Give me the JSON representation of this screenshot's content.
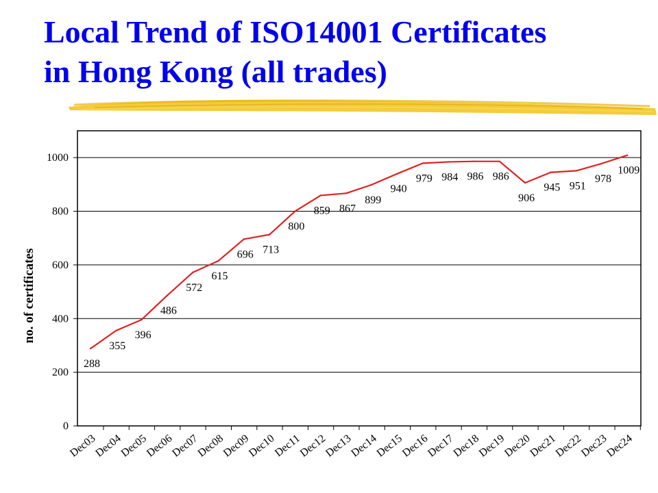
{
  "slide": {
    "title_line1": "Local Trend of ISO14001 Certificates",
    "title_line2": "in Hong Kong (all trades)"
  },
  "colors": {
    "title": "#0000ee",
    "brush_stroke": "#f2c21a",
    "line": "#e02020",
    "grid": "#000000"
  },
  "chart_data": {
    "type": "line",
    "title": "",
    "xlabel": "",
    "ylabel": "no. of certificates",
    "ylim": [
      0,
      1100
    ],
    "yticks": [
      0,
      200,
      400,
      600,
      800,
      1000
    ],
    "grid": true,
    "categories": [
      "Dec03",
      "Dec04",
      "Dec05",
      "Dec06",
      "Dec07",
      "Dec08",
      "Dec09",
      "Dec10",
      "Dec11",
      "Dec12",
      "Dec13",
      "Dec14",
      "Dec15",
      "Dec16",
      "Dec17",
      "Dec18",
      "Dec19",
      "Dec20",
      "Dec21",
      "Dec22",
      "Dec23",
      "Dec24"
    ],
    "series": [
      {
        "values": [
          288,
          355,
          396,
          486,
          572,
          615,
          696,
          713,
          800,
          859,
          867,
          899,
          940,
          979,
          984,
          986,
          986,
          906,
          945,
          951,
          978,
          1009
        ],
        "labels": [
          "288",
          "355",
          "396",
          "486",
          "572",
          "615",
          "696",
          "713",
          "800",
          "859",
          "867",
          "899",
          "940",
          "979",
          "984",
          "986",
          "986",
          "906",
          "945",
          "951",
          "978",
          "1009"
        ]
      }
    ]
  }
}
